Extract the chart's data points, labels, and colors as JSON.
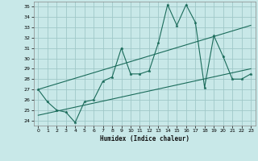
{
  "xlabel": "Humidex (Indice chaleur)",
  "bg_color": "#c8e8e8",
  "grid_color": "#a0c8c8",
  "line_color": "#1a6b5a",
  "xlim": [
    -0.5,
    23.5
  ],
  "ylim": [
    23.5,
    35.5
  ],
  "xticks": [
    0,
    1,
    2,
    3,
    4,
    5,
    6,
    7,
    8,
    9,
    10,
    11,
    12,
    13,
    14,
    15,
    16,
    17,
    18,
    19,
    20,
    21,
    22,
    23
  ],
  "yticks": [
    24,
    25,
    26,
    27,
    28,
    29,
    30,
    31,
    32,
    33,
    34,
    35
  ],
  "line1_x": [
    0,
    1,
    2,
    3,
    4,
    5,
    6,
    7,
    8,
    9,
    10,
    11,
    12,
    13,
    14,
    15,
    16,
    17,
    18,
    19,
    20,
    21,
    22,
    23
  ],
  "line1_y": [
    27.0,
    25.8,
    25.0,
    24.8,
    23.8,
    25.8,
    26.0,
    27.8,
    28.2,
    31.0,
    28.5,
    28.5,
    28.8,
    31.5,
    35.2,
    33.2,
    35.2,
    33.5,
    27.2,
    32.2,
    30.2,
    28.0,
    28.0,
    28.5
  ],
  "line3_x": [
    0,
    23
  ],
  "line3_y": [
    27.0,
    33.2
  ],
  "line4_x": [
    0,
    23
  ],
  "line4_y": [
    24.5,
    29.0
  ]
}
